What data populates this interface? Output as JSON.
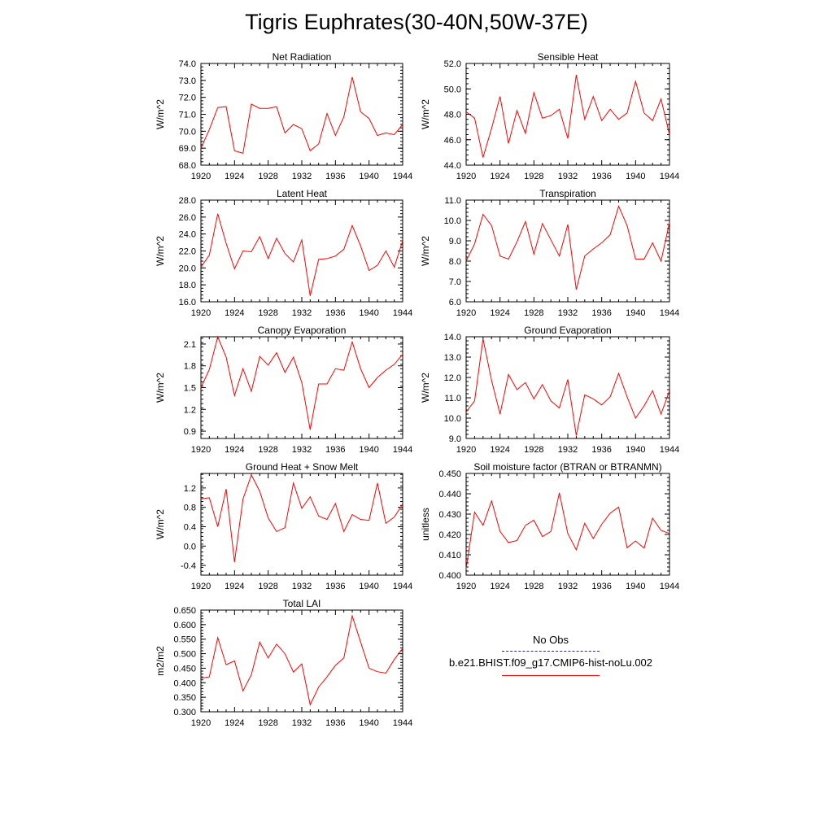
{
  "figure": {
    "title": "Tigris Euphrates(30-40N,50W-37E)",
    "legend": {
      "obs_label": "No Obs",
      "model_label": "b.e21.BHIST.f09_g17.CMIP6-hist-noLu.002",
      "model_color": "#ff0000",
      "obs_color": "#2a2a7a"
    }
  },
  "chart_data": [
    {
      "type": "line",
      "title": "Net Radiation",
      "ylabel": "W/m^2",
      "xlim": [
        1920,
        1944
      ],
      "ylim": [
        68,
        74
      ],
      "yticks": [
        "68.0",
        "69.0",
        "70.0",
        "71.0",
        "72.0",
        "73.0",
        "74.0"
      ],
      "xticks": [
        "1920",
        "1924",
        "1928",
        "1932",
        "1936",
        "1940",
        "1944"
      ],
      "series": [
        {
          "color": "#ff0000",
          "x": [
            1920,
            1921,
            1922,
            1923,
            1924,
            1925,
            1926,
            1927,
            1928,
            1929,
            1930,
            1931,
            1932,
            1933,
            1934,
            1935,
            1936,
            1937,
            1938,
            1939,
            1940,
            1941,
            1942,
            1943,
            1944
          ],
          "values": [
            69.0,
            70.1,
            71.4,
            71.45,
            68.85,
            68.7,
            71.6,
            71.35,
            71.35,
            71.45,
            69.9,
            70.4,
            70.15,
            68.85,
            69.25,
            71.05,
            69.75,
            70.85,
            73.2,
            71.15,
            70.75,
            69.75,
            69.9,
            69.8,
            70.4
          ]
        }
      ]
    },
    {
      "type": "line",
      "title": "Sensible Heat",
      "ylabel": "W/m^2",
      "xlim": [
        1920,
        1944
      ],
      "ylim": [
        44,
        52
      ],
      "yticks": [
        "44.0",
        "46.0",
        "48.0",
        "50.0",
        "52.0"
      ],
      "xticks": [
        "1920",
        "1924",
        "1928",
        "1932",
        "1936",
        "1940",
        "1944"
      ],
      "series": [
        {
          "color": "#ff0000",
          "x": [
            1920,
            1921,
            1922,
            1923,
            1924,
            1925,
            1926,
            1927,
            1928,
            1929,
            1930,
            1931,
            1932,
            1933,
            1934,
            1935,
            1936,
            1937,
            1938,
            1939,
            1940,
            1941,
            1942,
            1943,
            1944
          ],
          "values": [
            48.2,
            47.7,
            44.6,
            46.9,
            49.4,
            45.7,
            48.3,
            46.5,
            49.7,
            47.7,
            47.9,
            48.4,
            46.1,
            51.1,
            47.6,
            49.4,
            47.5,
            48.4,
            47.6,
            48.1,
            50.6,
            48.1,
            47.5,
            49.2,
            46.4
          ]
        }
      ]
    },
    {
      "type": "line",
      "title": "Latent Heat",
      "ylabel": "W/m^2",
      "xlim": [
        1920,
        1944
      ],
      "ylim": [
        16,
        28
      ],
      "yticks": [
        "16.0",
        "18.0",
        "20.0",
        "22.0",
        "24.0",
        "26.0",
        "28.0"
      ],
      "xticks": [
        "1920",
        "1924",
        "1928",
        "1932",
        "1936",
        "1940",
        "1944"
      ],
      "series": [
        {
          "color": "#ff0000",
          "x": [
            1920,
            1921,
            1922,
            1923,
            1924,
            1925,
            1926,
            1927,
            1928,
            1929,
            1930,
            1931,
            1932,
            1933,
            1934,
            1935,
            1936,
            1937,
            1938,
            1939,
            1940,
            1941,
            1942,
            1943,
            1944
          ],
          "values": [
            20.1,
            21.5,
            26.4,
            22.9,
            19.9,
            22.0,
            21.9,
            23.7,
            21.1,
            23.5,
            21.7,
            20.7,
            23.3,
            16.7,
            21.0,
            21.1,
            21.4,
            22.2,
            25.0,
            22.6,
            19.7,
            20.3,
            22.0,
            20.1,
            23.2
          ]
        }
      ]
    },
    {
      "type": "line",
      "title": "Transpiration",
      "ylabel": "W/m^2",
      "xlim": [
        1920,
        1944
      ],
      "ylim": [
        6,
        11
      ],
      "yticks": [
        "6.0",
        "7.0",
        "8.0",
        "9.0",
        "10.0",
        "11.0"
      ],
      "xticks": [
        "1920",
        "1924",
        "1928",
        "1932",
        "1936",
        "1940",
        "1944"
      ],
      "series": [
        {
          "color": "#ff0000",
          "x": [
            1920,
            1921,
            1922,
            1923,
            1924,
            1925,
            1926,
            1927,
            1928,
            1929,
            1930,
            1931,
            1932,
            1933,
            1934,
            1935,
            1936,
            1937,
            1938,
            1939,
            1940,
            1941,
            1942,
            1943,
            1944
          ],
          "values": [
            8.0,
            8.85,
            10.3,
            9.75,
            8.25,
            8.1,
            8.95,
            9.95,
            8.35,
            9.85,
            9.05,
            8.25,
            9.8,
            6.6,
            8.25,
            8.6,
            8.9,
            9.3,
            10.7,
            9.75,
            8.1,
            8.1,
            8.9,
            8.0,
            9.9
          ]
        }
      ]
    },
    {
      "type": "line",
      "title": "Canopy Evaporation",
      "ylabel": "W/m^2",
      "xlim": [
        1920,
        1944
      ],
      "ylim": [
        0.8,
        2.2
      ],
      "yticks": [
        "0.9",
        "1.2",
        "1.5",
        "1.8",
        "2.1"
      ],
      "xticks": [
        "1920",
        "1924",
        "1928",
        "1932",
        "1936",
        "1940",
        "1944"
      ],
      "series": [
        {
          "color": "#ff0000",
          "x": [
            1920,
            1921,
            1922,
            1923,
            1924,
            1925,
            1926,
            1927,
            1928,
            1929,
            1930,
            1931,
            1932,
            1933,
            1934,
            1935,
            1936,
            1937,
            1938,
            1939,
            1940,
            1941,
            1942,
            1943,
            1944
          ],
          "values": [
            1.5,
            1.75,
            2.2,
            1.92,
            1.39,
            1.76,
            1.45,
            1.93,
            1.81,
            1.98,
            1.71,
            1.92,
            1.57,
            0.92,
            1.55,
            1.55,
            1.76,
            1.74,
            2.13,
            1.76,
            1.5,
            1.64,
            1.74,
            1.82,
            1.96
          ]
        }
      ]
    },
    {
      "type": "line",
      "title": "Ground Evaporation",
      "ylabel": "W/m^2",
      "xlim": [
        1920,
        1944
      ],
      "ylim": [
        9,
        14
      ],
      "yticks": [
        "9.0",
        "10.0",
        "11.0",
        "12.0",
        "13.0",
        "14.0"
      ],
      "xticks": [
        "1920",
        "1924",
        "1928",
        "1932",
        "1936",
        "1940",
        "1944"
      ],
      "series": [
        {
          "color": "#ff0000",
          "x": [
            1920,
            1921,
            1922,
            1923,
            1924,
            1925,
            1926,
            1927,
            1928,
            1929,
            1930,
            1931,
            1932,
            1933,
            1934,
            1935,
            1936,
            1937,
            1938,
            1939,
            1940,
            1941,
            1942,
            1943,
            1944
          ],
          "values": [
            10.3,
            10.85,
            13.9,
            11.85,
            10.2,
            12.15,
            11.4,
            11.75,
            10.95,
            11.65,
            10.85,
            10.5,
            11.9,
            9.15,
            11.15,
            10.95,
            10.65,
            11.05,
            12.2,
            11.05,
            10.0,
            10.6,
            11.35,
            10.2,
            11.35
          ]
        }
      ]
    },
    {
      "type": "line",
      "title": "Ground Heat + Snow Melt",
      "ylabel": "W/m^2",
      "xlim": [
        1920,
        1944
      ],
      "ylim": [
        -0.6,
        1.5
      ],
      "yticks": [
        "-0.4",
        "0.0",
        "0.4",
        "0.8",
        "1.2"
      ],
      "xticks": [
        "1920",
        "1924",
        "1928",
        "1932",
        "1936",
        "1940",
        "1944"
      ],
      "series": [
        {
          "color": "#ff0000",
          "x": [
            1920,
            1921,
            1922,
            1923,
            1924,
            1925,
            1926,
            1927,
            1928,
            1929,
            1930,
            1931,
            1932,
            1933,
            1934,
            1935,
            1936,
            1937,
            1938,
            1939,
            1940,
            1941,
            1942,
            1943,
            1944
          ],
          "values": [
            0.97,
            1.0,
            0.4,
            1.18,
            -0.33,
            0.97,
            1.47,
            1.13,
            0.58,
            0.3,
            0.38,
            1.3,
            0.78,
            1.02,
            0.62,
            0.55,
            0.88,
            0.3,
            0.65,
            0.55,
            0.53,
            1.3,
            0.47,
            0.6,
            0.87
          ]
        }
      ]
    },
    {
      "type": "line",
      "title": "Soil moisture factor (BTRAN or BTRANMN)",
      "ylabel": "unitless",
      "xlim": [
        1920,
        1944
      ],
      "ylim": [
        0.4,
        0.45
      ],
      "yticks": [
        "0.400",
        "0.410",
        "0.420",
        "0.430",
        "0.440",
        "0.450"
      ],
      "xticks": [
        "1920",
        "1924",
        "1928",
        "1932",
        "1936",
        "1940",
        "1944"
      ],
      "series": [
        {
          "color": "#ff0000",
          "x": [
            1920,
            1921,
            1922,
            1923,
            1924,
            1925,
            1926,
            1927,
            1928,
            1929,
            1930,
            1931,
            1932,
            1933,
            1934,
            1935,
            1936,
            1937,
            1938,
            1939,
            1940,
            1941,
            1942,
            1943,
            1944
          ],
          "values": [
            0.403,
            0.431,
            0.4245,
            0.4365,
            0.4215,
            0.416,
            0.417,
            0.4245,
            0.427,
            0.419,
            0.4215,
            0.4405,
            0.4205,
            0.4125,
            0.4255,
            0.418,
            0.425,
            0.4305,
            0.4335,
            0.4135,
            0.4168,
            0.4133,
            0.428,
            0.422,
            0.4205
          ]
        }
      ]
    },
    {
      "type": "line",
      "title": "Total LAI",
      "ylabel": "m2/m2",
      "xlim": [
        1920,
        1944
      ],
      "ylim": [
        0.3,
        0.65
      ],
      "yticks": [
        "0.300",
        "0.350",
        "0.400",
        "0.450",
        "0.500",
        "0.550",
        "0.600",
        "0.650"
      ],
      "xticks": [
        "1920",
        "1924",
        "1928",
        "1932",
        "1936",
        "1940",
        "1944"
      ],
      "series": [
        {
          "color": "#ff0000",
          "x": [
            1920,
            1921,
            1922,
            1923,
            1924,
            1925,
            1926,
            1927,
            1928,
            1929,
            1930,
            1931,
            1932,
            1933,
            1934,
            1935,
            1936,
            1937,
            1938,
            1939,
            1940,
            1941,
            1942,
            1943,
            1944
          ],
          "values": [
            0.415,
            0.42,
            0.555,
            0.462,
            0.475,
            0.372,
            0.428,
            0.54,
            0.485,
            0.533,
            0.5,
            0.437,
            0.465,
            0.324,
            0.385,
            0.42,
            0.46,
            0.485,
            0.63,
            0.54,
            0.45,
            0.438,
            0.433,
            0.48,
            0.518
          ]
        }
      ]
    }
  ]
}
